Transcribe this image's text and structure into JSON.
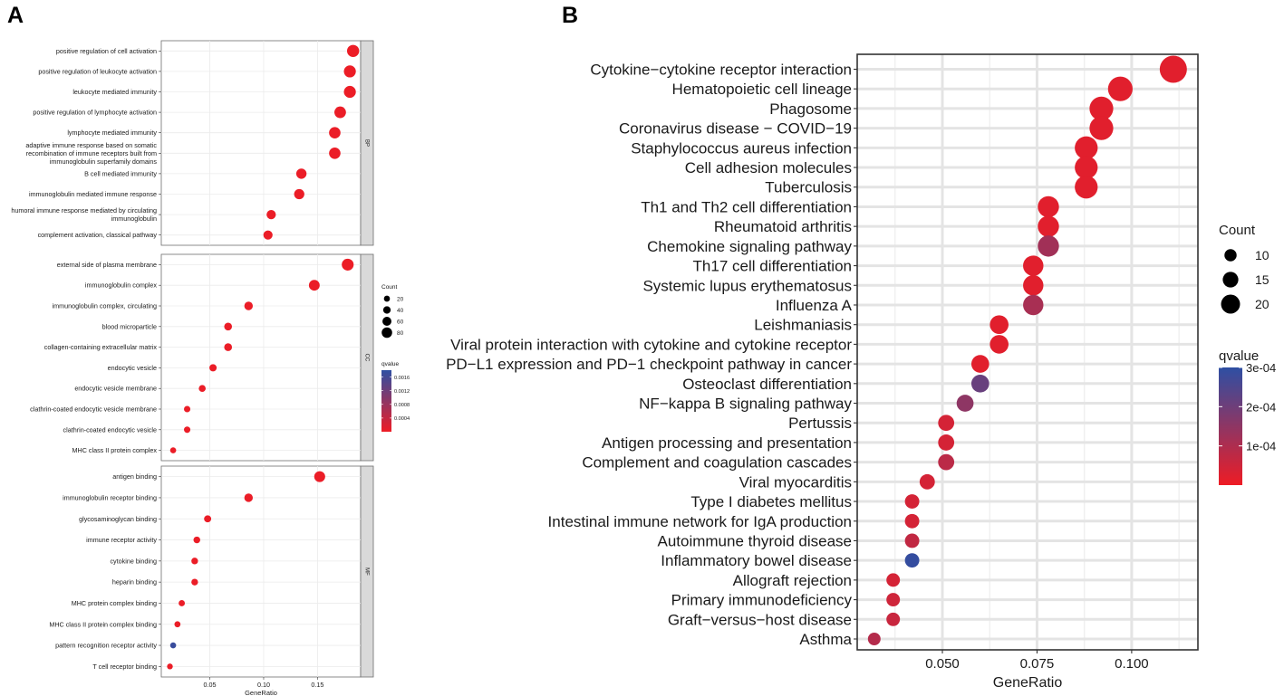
{
  "chart_data": [
    {
      "panel": "A",
      "type": "scatter",
      "subtype": "faceted-dotplot",
      "xlabel": "GeneRatio",
      "xticks": [
        0.05,
        0.1,
        0.15
      ],
      "xtick_labels": [
        "0.05",
        "0.10",
        "0.15"
      ],
      "xlim": [
        0.005,
        0.19
      ],
      "size_legend": {
        "title": "Count",
        "values": [
          20,
          40,
          60,
          80
        ]
      },
      "color_legend": {
        "title": "qvalue",
        "ticks": [
          0.0016,
          0.0012,
          0.0008,
          0.0004
        ],
        "tick_labels": [
          "0.0016",
          "0.0012",
          "0.0008",
          "0.0004"
        ],
        "range": [
          0.0,
          0.0018
        ],
        "low_color": "#EE1C25",
        "high_color": "#2E4FA3"
      },
      "facets": [
        {
          "name": "BP",
          "terms": [
            {
              "label": [
                "positive regulation of cell activation"
              ],
              "x": 0.183,
              "count": 78,
              "q": 2e-05
            },
            {
              "label": [
                "positive regulation of leukocyte activation"
              ],
              "x": 0.18,
              "count": 76,
              "q": 2e-05
            },
            {
              "label": [
                "leukocyte mediated immunity"
              ],
              "x": 0.18,
              "count": 76,
              "q": 2e-05
            },
            {
              "label": [
                "positive regulation of lymphocyte activation"
              ],
              "x": 0.171,
              "count": 72,
              "q": 3e-05
            },
            {
              "label": [
                "lymphocyte mediated immunity"
              ],
              "x": 0.166,
              "count": 70,
              "q": 3e-05
            },
            {
              "label": [
                "adaptive immune response based on somatic",
                "recombination of immune receptors built from",
                "immunoglobulin superfamily domains"
              ],
              "x": 0.166,
              "count": 70,
              "q": 3e-05
            },
            {
              "label": [
                "B cell mediated immunity"
              ],
              "x": 0.135,
              "count": 57,
              "q": 3e-05
            },
            {
              "label": [
                "immunoglobulin mediated immune response"
              ],
              "x": 0.133,
              "count": 56,
              "q": 3e-05
            },
            {
              "label": [
                "humoral immune response mediated by circulating",
                "immunoglobulin"
              ],
              "x": 0.107,
              "count": 45,
              "q": 3e-05
            },
            {
              "label": [
                "complement activation, classical pathway"
              ],
              "x": 0.104,
              "count": 44,
              "q": 3e-05
            }
          ]
        },
        {
          "name": "CC",
          "terms": [
            {
              "label": [
                "external side of plasma membrane"
              ],
              "x": 0.178,
              "count": 75,
              "q": 2e-05
            },
            {
              "label": [
                "immunoglobulin complex"
              ],
              "x": 0.147,
              "count": 62,
              "q": 3e-05
            },
            {
              "label": [
                "immunoglobulin complex, circulating"
              ],
              "x": 0.086,
              "count": 36,
              "q": 3e-05
            },
            {
              "label": [
                "blood microparticle"
              ],
              "x": 0.067,
              "count": 28,
              "q": 3e-05
            },
            {
              "label": [
                "collagen-containing extracellular matrix"
              ],
              "x": 0.067,
              "count": 28,
              "q": 3e-05
            },
            {
              "label": [
                "endocytic vesicle"
              ],
              "x": 0.053,
              "count": 22,
              "q": 3e-05
            },
            {
              "label": [
                "endocytic vesicle membrane"
              ],
              "x": 0.043,
              "count": 18,
              "q": 3e-05
            },
            {
              "label": [
                "clathrin-coated endocytic vesicle membrane"
              ],
              "x": 0.029,
              "count": 12,
              "q": 3e-05
            },
            {
              "label": [
                "clathrin-coated endocytic vesicle"
              ],
              "x": 0.029,
              "count": 12,
              "q": 3e-05
            },
            {
              "label": [
                "MHC class II protein complex"
              ],
              "x": 0.016,
              "count": 7,
              "q": 3e-05
            }
          ]
        },
        {
          "name": "MF",
          "terms": [
            {
              "label": [
                "antigen binding"
              ],
              "x": 0.152,
              "count": 64,
              "q": 3e-05
            },
            {
              "label": [
                "immunoglobulin receptor binding"
              ],
              "x": 0.086,
              "count": 36,
              "q": 3e-05
            },
            {
              "label": [
                "glycosaminoglycan binding"
              ],
              "x": 0.048,
              "count": 20,
              "q": 3e-05
            },
            {
              "label": [
                "immune receptor activity"
              ],
              "x": 0.038,
              "count": 16,
              "q": 3e-05
            },
            {
              "label": [
                "cytokine binding"
              ],
              "x": 0.036,
              "count": 15,
              "q": 3e-05
            },
            {
              "label": [
                "heparin binding"
              ],
              "x": 0.036,
              "count": 15,
              "q": 3e-05
            },
            {
              "label": [
                "MHC protein complex binding"
              ],
              "x": 0.024,
              "count": 10,
              "q": 3e-05
            },
            {
              "label": [
                "MHC class II protein complex binding"
              ],
              "x": 0.02,
              "count": 8,
              "q": 3e-05
            },
            {
              "label": [
                "pattern recognition receptor activity"
              ],
              "x": 0.016,
              "count": 7,
              "q": 0.0017
            },
            {
              "label": [
                "T cell receptor binding"
              ],
              "x": 0.013,
              "count": 5,
              "q": 3e-05
            }
          ]
        }
      ]
    },
    {
      "panel": "B",
      "type": "scatter",
      "subtype": "dotplot",
      "xlabel": "GeneRatio",
      "xticks": [
        0.05,
        0.075,
        0.1
      ],
      "xtick_labels": [
        "0.050",
        "0.075",
        "0.100"
      ],
      "xlim": [
        0.0275,
        0.1175
      ],
      "size_legend": {
        "title": "Count",
        "values": [
          10,
          15,
          20
        ]
      },
      "color_legend": {
        "title": "qvalue",
        "ticks": [
          0.0003,
          0.0002,
          0.0001
        ],
        "tick_labels": [
          "3e-04",
          "2e-04",
          "1e-04"
        ],
        "range": [
          0.0,
          0.0003
        ],
        "low_color": "#EE1C25",
        "high_color": "#2E4FA3"
      },
      "terms": [
        {
          "label": "Cytokine−cytokine receptor interaction",
          "x": 0.111,
          "count": 24,
          "q": 2e-05
        },
        {
          "label": "Hematopoietic cell lineage",
          "x": 0.097,
          "count": 21,
          "q": 2e-05
        },
        {
          "label": "Phagosome",
          "x": 0.092,
          "count": 20,
          "q": 2e-05
        },
        {
          "label": "Coronavirus disease − COVID−19",
          "x": 0.092,
          "count": 20,
          "q": 2e-05
        },
        {
          "label": "Staphylococcus aureus infection",
          "x": 0.088,
          "count": 19,
          "q": 2e-05
        },
        {
          "label": "Cell adhesion molecules",
          "x": 0.088,
          "count": 19,
          "q": 2e-05
        },
        {
          "label": "Tuberculosis",
          "x": 0.088,
          "count": 19,
          "q": 2e-05
        },
        {
          "label": "Th1 and Th2 cell differentiation",
          "x": 0.078,
          "count": 17,
          "q": 2e-05
        },
        {
          "label": "Rheumatoid arthritis",
          "x": 0.078,
          "count": 17,
          "q": 2e-05
        },
        {
          "label": "Chemokine signaling pathway",
          "x": 0.078,
          "count": 17,
          "q": 0.00012
        },
        {
          "label": "Th17 cell differentiation",
          "x": 0.074,
          "count": 16,
          "q": 2e-05
        },
        {
          "label": "Systemic lupus erythematosus",
          "x": 0.074,
          "count": 16,
          "q": 2e-05
        },
        {
          "label": "Influenza A",
          "x": 0.074,
          "count": 16,
          "q": 0.00011
        },
        {
          "label": "Leishmaniasis",
          "x": 0.065,
          "count": 14,
          "q": 2e-05
        },
        {
          "label": "Viral protein interaction with cytokine and cytokine receptor",
          "x": 0.065,
          "count": 14,
          "q": 2e-05
        },
        {
          "label": "PD−L1 expression and PD−1 checkpoint pathway in cancer",
          "x": 0.06,
          "count": 13,
          "q": 2e-05
        },
        {
          "label": "Osteoclast differentiation",
          "x": 0.06,
          "count": 13,
          "q": 0.00021
        },
        {
          "label": "NF−kappa B signaling pathway",
          "x": 0.056,
          "count": 12,
          "q": 0.00015
        },
        {
          "label": "Pertussis",
          "x": 0.051,
          "count": 11,
          "q": 4e-05
        },
        {
          "label": "Antigen processing and presentation",
          "x": 0.051,
          "count": 11,
          "q": 4e-05
        },
        {
          "label": "Complement and coagulation cascades",
          "x": 0.051,
          "count": 11,
          "q": 8e-05
        },
        {
          "label": "Viral myocarditis",
          "x": 0.046,
          "count": 10,
          "q": 4e-05
        },
        {
          "label": "Type I diabetes mellitus",
          "x": 0.042,
          "count": 9,
          "q": 4e-05
        },
        {
          "label": "Intestinal immune network for IgA production",
          "x": 0.042,
          "count": 9,
          "q": 4e-05
        },
        {
          "label": "Autoimmune thyroid disease",
          "x": 0.042,
          "count": 9,
          "q": 7e-05
        },
        {
          "label": "Inflammatory bowel disease",
          "x": 0.042,
          "count": 9,
          "q": 0.00029
        },
        {
          "label": "Allograft rejection",
          "x": 0.037,
          "count": 8,
          "q": 4e-05
        },
        {
          "label": "Primary immunodeficiency",
          "x": 0.037,
          "count": 8,
          "q": 5e-05
        },
        {
          "label": "Graft−versus−host disease",
          "x": 0.037,
          "count": 8,
          "q": 6e-05
        },
        {
          "label": "Asthma",
          "x": 0.032,
          "count": 7,
          "q": 9e-05
        }
      ]
    }
  ]
}
